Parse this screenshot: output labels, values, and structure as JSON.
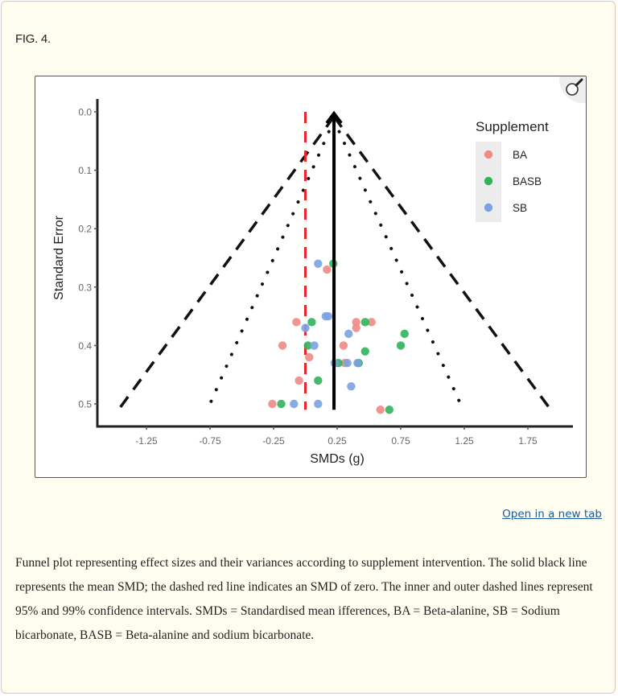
{
  "figure": {
    "label": "FIG. 4.",
    "open_link": "Open in a new tab",
    "zoom_icon": "magnifier-icon",
    "caption": "Funnel plot representing effect sizes and their variances according to supplement intervention. The solid black line represents the mean SMD; the dashed red line indicates an SMD of zero. The inner and outer dashed lines represent 95% and 99% confidence intervals. SMDs = Standardised mean ifferences, BA = Beta-alanine, SB = Sodium bicarbonate, BASB = Beta-alanine and sodium bicarbonate."
  },
  "chart_data": {
    "type": "scatter",
    "title": "",
    "xlabel": "SMDs (g)",
    "ylabel": "Standard Error",
    "x_ticks": [
      -1.25,
      -0.75,
      -0.25,
      0.25,
      0.75,
      1.25,
      1.75
    ],
    "x_tick_labels": [
      "-1.25",
      "-0.75",
      "-0.25",
      "0.25",
      "0.75",
      "1.25",
      "1.75"
    ],
    "y_ticks": [
      0.0,
      0.1,
      0.2,
      0.3,
      0.4,
      0.5
    ],
    "y_tick_labels": [
      "0.0",
      "0.1",
      "0.2",
      "0.3",
      "0.4",
      "0.5"
    ],
    "y_reversed": true,
    "xlim": [
      -1.64,
      2.11
    ],
    "ylim": [
      -0.02,
      0.54
    ],
    "grid": false,
    "legend": {
      "title": "Supplement",
      "position": "top-right"
    },
    "reference_lines": {
      "mean_smd": 0.225,
      "zero_line": 0.0,
      "zero_line_color": "#e8262b",
      "ci95": {
        "apex": [
          0.225,
          0.0
        ],
        "bottom_left": [
          -0.77,
          0.51
        ],
        "bottom_right": [
          1.24,
          0.51
        ]
      },
      "ci99": {
        "apex": [
          0.225,
          0.0
        ],
        "bottom_left": [
          -1.47,
          0.51
        ],
        "bottom_right": [
          1.93,
          0.51
        ]
      }
    },
    "series": [
      {
        "name": "BA",
        "color": "#f08a86",
        "points": [
          [
            0.17,
            0.27
          ],
          [
            -0.07,
            0.36
          ],
          [
            0.4,
            0.36
          ],
          [
            0.52,
            0.36
          ],
          [
            0.4,
            0.37
          ],
          [
            -0.18,
            0.4
          ],
          [
            0.3,
            0.4
          ],
          [
            0.03,
            0.42
          ],
          [
            0.31,
            0.43
          ],
          [
            -0.05,
            0.46
          ],
          [
            -0.26,
            0.5
          ],
          [
            0.59,
            0.51
          ]
        ]
      },
      {
        "name": "BASB",
        "color": "#2fb45a",
        "points": [
          [
            0.22,
            0.26
          ],
          [
            0.05,
            0.36
          ],
          [
            0.47,
            0.36
          ],
          [
            0.78,
            0.38
          ],
          [
            0.02,
            0.4
          ],
          [
            0.75,
            0.4
          ],
          [
            0.47,
            0.41
          ],
          [
            0.26,
            0.43
          ],
          [
            0.42,
            0.43
          ],
          [
            0.1,
            0.46
          ],
          [
            -0.19,
            0.5
          ],
          [
            0.66,
            0.51
          ]
        ]
      },
      {
        "name": "SB",
        "color": "#7aa2e0",
        "points": [
          [
            0.1,
            0.26
          ],
          [
            0.16,
            0.35
          ],
          [
            0.18,
            0.35
          ],
          [
            0.0,
            0.37
          ],
          [
            0.34,
            0.38
          ],
          [
            0.07,
            0.4
          ],
          [
            0.23,
            0.43
          ],
          [
            0.33,
            0.43
          ],
          [
            0.41,
            0.43
          ],
          [
            0.36,
            0.47
          ],
          [
            -0.09,
            0.5
          ],
          [
            0.1,
            0.5
          ]
        ]
      }
    ]
  }
}
